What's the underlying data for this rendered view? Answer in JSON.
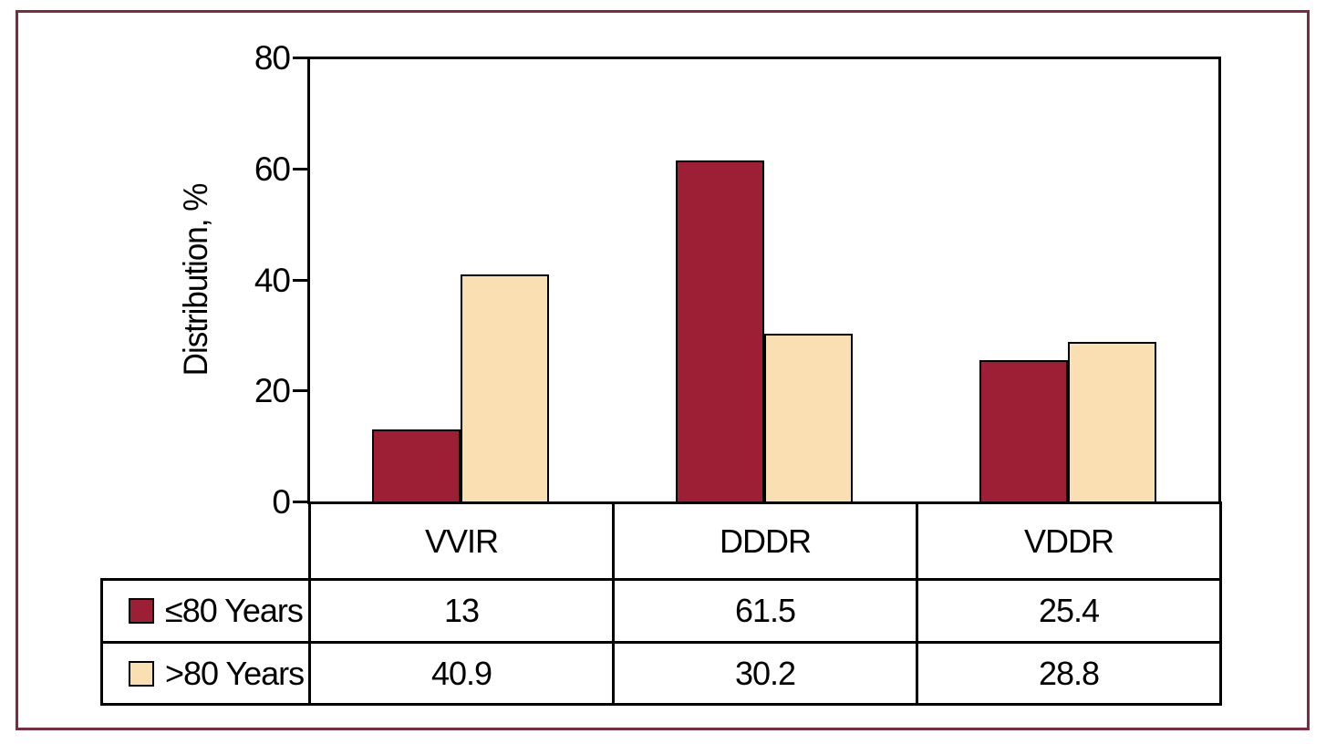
{
  "frame": {
    "border_color": "#7d2b3f",
    "background": "#ffffff"
  },
  "chart_data": {
    "type": "bar",
    "title": "",
    "ylabel": "Distribution, %",
    "xlabel": "",
    "ylim": [
      0,
      80
    ],
    "yticks": [
      0,
      20,
      40,
      60,
      80
    ],
    "grid": false,
    "axis_color": "#000000",
    "bar_outline_color": "#000000",
    "legend_position": "table-below",
    "categories": [
      "VVIR",
      "DDDR",
      "VDDR"
    ],
    "series": [
      {
        "name": "≤80 Years",
        "color": "#9c1f35",
        "values": [
          13,
          61.5,
          25.4
        ]
      },
      {
        "name": ">80 Years",
        "color": "#f9dfb2",
        "values": [
          40.9,
          30.2,
          28.8
        ]
      }
    ]
  },
  "table": {
    "column_headers": [
      "VVIR",
      "DDDR",
      "VDDR"
    ],
    "rows": [
      {
        "legend": "≤80 Years",
        "swatch_color": "#9c1f35",
        "values": [
          "13",
          "61.5",
          "25.4"
        ]
      },
      {
        "legend": ">80 Years",
        "swatch_color": "#f9dfb2",
        "values": [
          "40.9",
          "30.2",
          "28.8"
        ]
      }
    ]
  }
}
